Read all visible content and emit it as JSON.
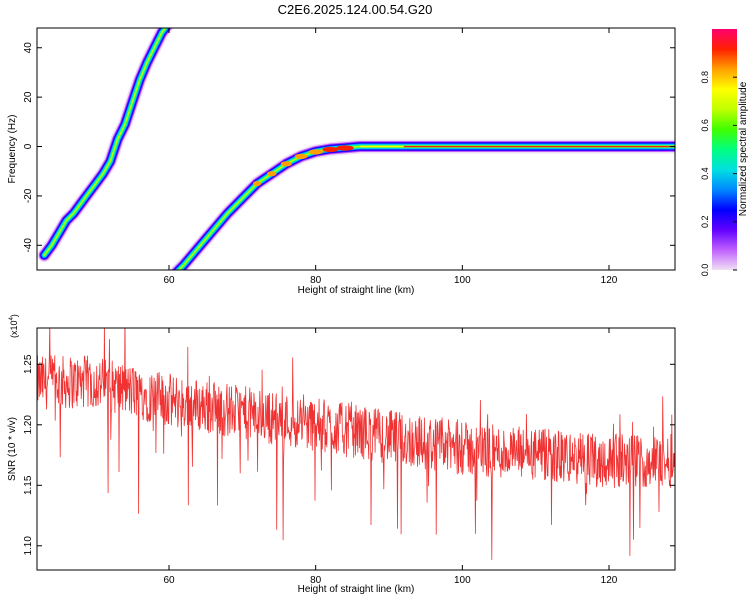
{
  "title": "C2E6.2025.124.00.54.G20",
  "colors": {
    "snr_line": "#f03232",
    "spectrum_background": "#ffffff",
    "colormap": [
      "#f0e0f4",
      "#c060ff",
      "#6000ff",
      "#0000ff",
      "#0088ff",
      "#00e0e0",
      "#00ff80",
      "#40ff00",
      "#c0ff00",
      "#ffff00",
      "#ffa000",
      "#ff2000",
      "#ff0070"
    ]
  },
  "chart_data": [
    {
      "type": "heatmap",
      "title": "",
      "xlabel": "Height of straight line (km)",
      "ylabel": "Frequency (Hz)",
      "xlim": [
        42,
        129
      ],
      "ylim": [
        -50,
        48
      ],
      "xticks": [
        60,
        80,
        100,
        120
      ],
      "yticks": [
        40,
        20,
        0,
        -20,
        -40
      ],
      "grid": false,
      "colorbar": {
        "label": "Normalized spectral amplitude",
        "range": [
          0,
          1
        ],
        "ticks": [
          "0.0",
          "0.2",
          "0.4",
          "0.6",
          "0.8"
        ]
      },
      "tracks": [
        {
          "points": [
            [
              43,
              -44
            ],
            [
              44,
              -40
            ],
            [
              45,
              -35
            ],
            [
              46,
              -30
            ],
            [
              47,
              -27
            ],
            [
              48,
              -23
            ],
            [
              49,
              -19
            ],
            [
              50,
              -15
            ],
            [
              51,
              -11
            ],
            [
              52,
              -6
            ],
            [
              53,
              3
            ],
            [
              54,
              9
            ],
            [
              55,
              18
            ],
            [
              56,
              27
            ],
            [
              57,
              34
            ],
            [
              58,
              40
            ],
            [
              59,
              46
            ],
            [
              60,
              50
            ]
          ]
        },
        {
          "points": [
            [
              61,
              -51
            ],
            [
              62,
              -48
            ],
            [
              64,
              -41
            ],
            [
              66,
              -34
            ],
            [
              68,
              -27
            ],
            [
              70,
              -21
            ],
            [
              72,
              -15
            ],
            [
              74,
              -11
            ],
            [
              76,
              -7
            ],
            [
              78,
              -4
            ],
            [
              80,
              -2
            ],
            [
              82,
              -1
            ],
            [
              84,
              -0.5
            ],
            [
              86,
              0
            ],
            [
              92,
              0
            ],
            [
              100,
              0
            ],
            [
              110,
              0
            ],
            [
              120,
              0
            ],
            [
              129,
              0
            ]
          ]
        }
      ]
    },
    {
      "type": "line",
      "title": "",
      "xlabel": "Height of straight line (km)",
      "ylabel": "SNR (10 * v/v)",
      "y_multiplier": "(x10",
      "y_multiplier_exp": "4",
      "y_multiplier_close": ")",
      "xlim": [
        42,
        129
      ],
      "ylim": [
        1.08,
        1.28
      ],
      "xticks": [
        60,
        80,
        100,
        120
      ],
      "yticks": [
        1.25,
        1.2,
        1.15,
        1.1
      ],
      "grid": false,
      "series": [
        {
          "values_note": "SNR trend approximately",
          "trend": [
            [
              42,
              1.235
            ],
            [
              50,
              1.235
            ],
            [
              60,
              1.22
            ],
            [
              70,
              1.21
            ],
            [
              80,
              1.2
            ],
            [
              90,
              1.19
            ],
            [
              100,
              1.18
            ],
            [
              110,
              1.175
            ],
            [
              120,
              1.17
            ],
            [
              129,
              1.17
            ]
          ]
        }
      ]
    }
  ]
}
